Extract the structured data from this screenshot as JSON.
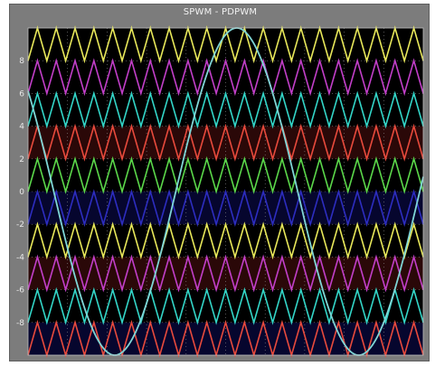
{
  "window": {
    "title": "SPWM - PDPWM"
  },
  "chart_data": {
    "type": "line",
    "title": "SPWM - PDPWM",
    "xlabel": "",
    "ylabel": "",
    "ylim": [
      -10,
      10
    ],
    "xlim": [
      0,
      1
    ],
    "grid": true,
    "grid_style": "dotted",
    "background": "#000000",
    "yticks": [
      8,
      6,
      4,
      2,
      0,
      -2,
      -4,
      -6,
      -8
    ],
    "ytick_labels": [
      "8",
      "6",
      "4",
      "2",
      "0",
      "-2",
      "-4",
      "-6",
      "-8"
    ],
    "carriers": {
      "count": 10,
      "cycles_shown": 21,
      "bands": [
        {
          "low": 8,
          "high": 10,
          "color": "#e8e85a"
        },
        {
          "low": 6,
          "high": 8,
          "color": "#c23fc9"
        },
        {
          "low": 4,
          "high": 6,
          "color": "#33d6c8"
        },
        {
          "low": 2,
          "high": 4,
          "color": "#e84a3c"
        },
        {
          "low": 0,
          "high": 2,
          "color": "#5bd84a"
        },
        {
          "low": -2,
          "high": 0,
          "color": "#2d2dc0"
        },
        {
          "low": -4,
          "high": -2,
          "color": "#e8e85a"
        },
        {
          "low": -6,
          "high": -4,
          "color": "#c23fc9"
        },
        {
          "low": -8,
          "high": -6,
          "color": "#33d6c8"
        },
        {
          "low": -10,
          "high": -8,
          "color": "#e84a3c"
        }
      ]
    },
    "band_fills": [
      {
        "low": 2,
        "high": 4,
        "color": "#2a0808"
      },
      {
        "low": -2,
        "high": 0,
        "color": "#06062e"
      },
      {
        "low": -6,
        "high": -4,
        "color": "#2a0808"
      },
      {
        "low": -10,
        "high": -8,
        "color": "#06062e"
      }
    ],
    "series": [
      {
        "kind": "sine",
        "amplitude": 10,
        "cycles_shown": 1.62,
        "phase_deg": 142,
        "color": "#7fd6d6"
      }
    ]
  }
}
